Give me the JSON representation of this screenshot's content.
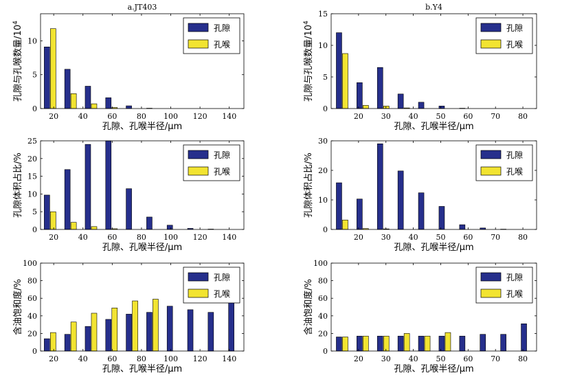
{
  "colors": {
    "pore": "#262f8c",
    "throat": "#f2e431",
    "axis": "#000000"
  },
  "legend": {
    "pore": "孔隙",
    "throat": "孔喉"
  },
  "chart_data": [
    {
      "id": "a1",
      "type": "bar",
      "title": "a.JT403",
      "ylabel": "孔隙与孔喉数量/10",
      "ylabel_sup": "4",
      "xlabel": "孔隙、孔喉半径/μm",
      "xlim": [
        11,
        150
      ],
      "ylim": [
        0,
        14
      ],
      "xticks": [
        20,
        40,
        60,
        80,
        100,
        120,
        140
      ],
      "yticks": [
        0,
        5,
        10
      ],
      "x": [
        17.5,
        31.5,
        45.5,
        59.5,
        73.5,
        87.5,
        101.5,
        115.5,
        129.5,
        143.5
      ],
      "series": [
        {
          "name": "孔隙",
          "values": [
            9.1,
            5.8,
            3.3,
            1.6,
            0.4,
            0.05,
            0,
            0,
            0,
            0
          ]
        },
        {
          "name": "孔喉",
          "values": [
            11.8,
            2.2,
            0.7,
            0.15,
            0,
            0,
            0,
            0,
            0,
            0
          ]
        }
      ]
    },
    {
      "id": "b1",
      "type": "bar",
      "title": "b.Y4",
      "ylabel": "孔隙与孔喉数量/10",
      "ylabel_sup": "4",
      "xlabel": "孔隙、孔喉半径/μm",
      "xlim": [
        10,
        85
      ],
      "ylim": [
        0,
        15
      ],
      "xticks": [
        20,
        30,
        40,
        50,
        60,
        70,
        80
      ],
      "yticks": [
        0,
        5,
        10,
        15
      ],
      "x": [
        14,
        21.5,
        29,
        36.5,
        44,
        51.5,
        59,
        66.5,
        74,
        81.5
      ],
      "series": [
        {
          "name": "孔隙",
          "values": [
            12,
            4.1,
            6.5,
            2.3,
            1.0,
            0.4,
            0.05,
            0,
            0,
            0
          ]
        },
        {
          "name": "孔喉",
          "values": [
            8.7,
            0.5,
            0.4,
            0.1,
            0,
            0,
            0,
            0,
            0,
            0
          ]
        }
      ]
    },
    {
      "id": "a2",
      "type": "bar",
      "ylabel": "孔隙体积占比/%",
      "xlabel": "孔隙、孔喉半径/μm",
      "xlim": [
        11,
        150
      ],
      "ylim": [
        0,
        25
      ],
      "xticks": [
        20,
        40,
        60,
        80,
        100,
        120,
        140
      ],
      "yticks": [
        0,
        5,
        10,
        15,
        20,
        25
      ],
      "x": [
        17.5,
        31.5,
        45.5,
        59.5,
        73.5,
        87.5,
        101.5,
        115.5,
        129.5,
        143.5
      ],
      "series": [
        {
          "name": "孔隙",
          "values": [
            9.7,
            16.9,
            24,
            25,
            11.5,
            3.5,
            1.2,
            0.3,
            0.1,
            0
          ]
        },
        {
          "name": "孔喉",
          "values": [
            5.0,
            2.0,
            0.8,
            0.2,
            0,
            0,
            0,
            0,
            0,
            0
          ]
        }
      ]
    },
    {
      "id": "b2",
      "type": "bar",
      "ylabel": "孔隙体积占比/%",
      "xlabel": "孔隙、孔喉半径/μm",
      "xlim": [
        10,
        85
      ],
      "ylim": [
        0,
        30
      ],
      "xticks": [
        20,
        30,
        40,
        50,
        60,
        70,
        80
      ],
      "yticks": [
        0,
        10,
        20,
        30
      ],
      "x": [
        14,
        21.5,
        29,
        36.5,
        44,
        51.5,
        59,
        66.5,
        74,
        81.5
      ],
      "series": [
        {
          "name": "孔隙",
          "values": [
            15.8,
            10.3,
            29,
            19.8,
            12.4,
            7.8,
            1.6,
            0.5,
            0.1,
            0
          ]
        },
        {
          "name": "孔喉",
          "values": [
            3.2,
            0.3,
            0.2,
            0,
            0,
            0,
            0,
            0,
            0,
            0
          ]
        }
      ]
    },
    {
      "id": "a3",
      "type": "bar",
      "ylabel": "含油饱和度/%",
      "xlabel": "孔隙、孔喉半径/μm",
      "xlim": [
        11,
        150
      ],
      "ylim": [
        0,
        100
      ],
      "xticks": [
        20,
        40,
        60,
        80,
        100,
        120,
        140
      ],
      "yticks": [
        0,
        20,
        40,
        60,
        80,
        100
      ],
      "x": [
        17.5,
        31.5,
        45.5,
        59.5,
        73.5,
        87.5,
        101.5,
        115.5,
        129.5,
        143.5
      ],
      "series": [
        {
          "name": "孔隙",
          "values": [
            14,
            19,
            28,
            36,
            42,
            44,
            51,
            47,
            44,
            56
          ]
        },
        {
          "name": "孔喉",
          "values": [
            21,
            33,
            43,
            49,
            57,
            59,
            0,
            0,
            0,
            0
          ]
        }
      ]
    },
    {
      "id": "b3",
      "type": "bar",
      "ylabel": "含油饱和度/%",
      "xlabel": "孔隙、孔喉半径/μm",
      "xlim": [
        10,
        85
      ],
      "ylim": [
        0,
        100
      ],
      "xticks": [
        20,
        30,
        40,
        50,
        60,
        70,
        80
      ],
      "yticks": [
        0,
        20,
        40,
        60,
        80,
        100
      ],
      "x": [
        14,
        21.5,
        29,
        36.5,
        44,
        51.5,
        59,
        66.5,
        74,
        81.5
      ],
      "series": [
        {
          "name": "孔隙",
          "values": [
            16,
            17,
            17,
            17,
            17,
            17,
            17,
            19,
            19,
            31
          ]
        },
        {
          "name": "孔喉",
          "values": [
            16,
            17,
            17,
            20,
            17,
            21,
            0,
            0,
            0,
            0
          ]
        }
      ]
    }
  ]
}
